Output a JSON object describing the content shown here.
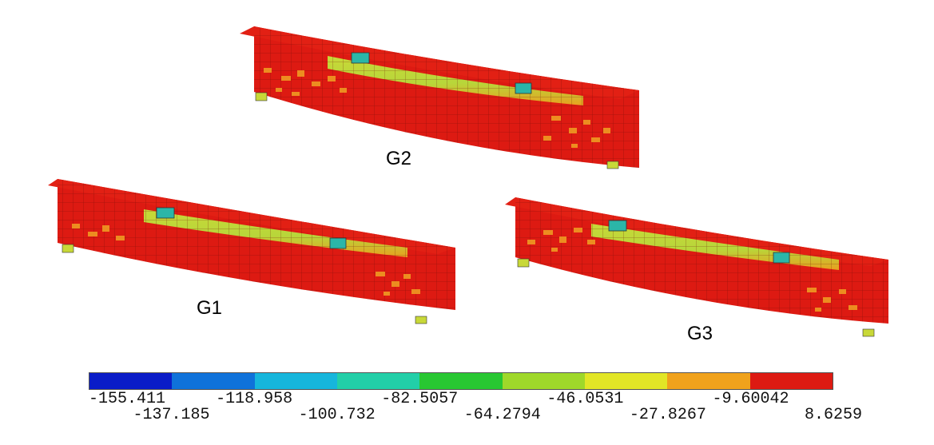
{
  "beams": [
    {
      "id": "G2",
      "label": "G2"
    },
    {
      "id": "G1",
      "label": "G1"
    },
    {
      "id": "G3",
      "label": "G3"
    }
  ],
  "legend": {
    "colors": [
      "#0a1cc8",
      "#0f72da",
      "#16b6dc",
      "#22cfa8",
      "#28c732",
      "#9fd82a",
      "#e2e626",
      "#f0a21c",
      "#dd1a12"
    ],
    "labels_upper": [
      "-155.411",
      "-118.958",
      "-82.5057",
      "-46.0531",
      "-9.60042"
    ],
    "labels_lower": [
      "-137.185",
      "-100.732",
      "-64.2794",
      "-27.8267",
      "8.6259"
    ]
  }
}
